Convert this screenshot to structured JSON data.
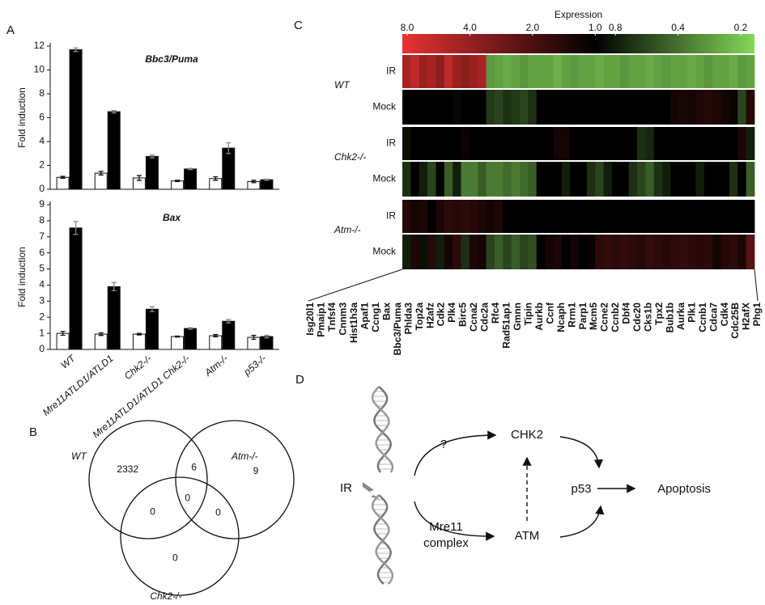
{
  "panel_labels": [
    "A",
    "B",
    "C",
    "D"
  ],
  "chart_data": [
    {
      "type": "bar",
      "title": "Bbc3/Puma",
      "ylabel": "Fold induction",
      "ylim": [
        0,
        12
      ],
      "yticks": [
        0,
        2,
        4,
        6,
        8,
        10,
        12
      ],
      "series": [
        {
          "color": "#ffffff",
          "values": [
            1.0,
            1.35,
            0.95,
            0.7,
            0.9,
            0.65
          ],
          "errors": [
            0.08,
            0.15,
            0.2,
            0.05,
            0.15,
            0.1
          ]
        },
        {
          "color": "#000000",
          "values": [
            11.7,
            6.5,
            2.75,
            1.7,
            3.45,
            0.8
          ],
          "errors": [
            0.15,
            0.1,
            0.12,
            0.05,
            0.45,
            0.05
          ]
        }
      ]
    },
    {
      "type": "bar",
      "title": "Bax",
      "ylabel": "Fold induction",
      "ylim": [
        0,
        9
      ],
      "yticks": [
        0,
        1,
        2,
        3,
        4,
        5,
        6,
        7,
        8,
        9
      ],
      "categories": [
        "WT",
        "Mre11ATLD1/ATLD1",
        "Chk2-/-",
        "Mre11ATLD1/ATLD1 Chk2-/-",
        "Atm-/-",
        "p53-/-"
      ],
      "series": [
        {
          "color": "#ffffff",
          "values": [
            1.0,
            0.95,
            0.95,
            0.8,
            0.85,
            0.75
          ],
          "errors": [
            0.12,
            0.08,
            0.05,
            0.03,
            0.07,
            0.12
          ]
        },
        {
          "color": "#000000",
          "values": [
            7.55,
            3.9,
            2.5,
            1.3,
            1.75,
            0.8
          ],
          "errors": [
            0.4,
            0.25,
            0.15,
            0.05,
            0.1,
            0.08
          ]
        }
      ]
    },
    {
      "type": "venn",
      "sets": [
        "WT",
        "Atm-/-",
        "Chk2-/-"
      ],
      "regions": [
        {
          "sets": [
            0
          ],
          "value": 2332
        },
        {
          "sets": [
            1
          ],
          "value": 9
        },
        {
          "sets": [
            2
          ],
          "value": 0
        },
        {
          "sets": [
            0,
            1
          ],
          "value": 6
        },
        {
          "sets": [
            0,
            2
          ],
          "value": 0
        },
        {
          "sets": [
            1,
            2
          ],
          "value": 0
        },
        {
          "sets": [
            0,
            1,
            2
          ],
          "value": 0
        }
      ]
    },
    {
      "type": "heatmap",
      "colorbar_title": "Expression",
      "log_scale": true,
      "clim": [
        8,
        0.2
      ],
      "colorbar_ticks": [
        {
          "value": 8,
          "label": "8.0"
        },
        {
          "value": 4,
          "label": "4.0"
        },
        {
          "value": 2,
          "label": "2.0"
        },
        {
          "value": 1,
          "label": "1.0"
        },
        {
          "value": 0.8,
          "label": "0.8"
        },
        {
          "value": 0.4,
          "label": "0.4"
        },
        {
          "value": 0.2,
          "label": "0.2"
        }
      ],
      "high_color": "#e83232",
      "mid_color": "#000000",
      "low_color": "#84d85a",
      "gene_groups": [
        {
          "color": "#d0222a",
          "genes": [
            "Isg20l1",
            "Pmaip1",
            "Tnfsf4",
            "Cnnm3",
            "Hist1h3a",
            "Apaf1",
            "Ccng1",
            "Bax",
            "Bbc3/Puma",
            "Phlda3"
          ]
        },
        {
          "color": "#1f7a3c",
          "genes": [
            "Top2a",
            "H2afz",
            "Cdk2",
            "Plk4",
            "Birc5",
            "Ccna2",
            "Cdc2a",
            "Rfc4",
            "Rad51ap1",
            "Gmnn",
            "Tipin",
            "Aurkb",
            "Ccnf",
            "Ncaph",
            "Rrm1",
            "Parp1",
            "Mcm5",
            "Ccne2",
            "Ccnb2",
            "Dbf4",
            "Cdc20",
            "Cks1b",
            "Tpx2",
            "Bub1b",
            "Aurka",
            "Plk1",
            "Ccnb1",
            "Cdca7",
            "Cdk4",
            "Cdc25B",
            "H2afX",
            "Phg1"
          ]
        }
      ],
      "row_groups": [
        {
          "name": "WT",
          "rows": [
            {
              "name": "IR",
              "values": [
                4.5,
                5.5,
                4.0,
                4.5,
                3.5,
                5.5,
                4.0,
                3.5,
                4.0,
                4.5,
                0.32,
                0.3,
                0.28,
                0.3,
                0.33,
                0.3,
                0.3,
                0.3,
                0.27,
                0.3,
                0.32,
                0.3,
                0.3,
                0.28,
                0.3,
                0.3,
                0.33,
                0.3,
                0.3,
                0.28,
                0.3,
                0.32,
                0.3,
                0.3,
                0.28,
                0.3,
                0.33,
                0.3,
                0.3,
                0.28,
                0.32,
                0.3
              ]
            },
            {
              "name": "Mock",
              "values": [
                1,
                1,
                1,
                1,
                1,
                1,
                0.95,
                1,
                1,
                1,
                0.65,
                0.6,
                0.7,
                0.65,
                0.6,
                0.7,
                1,
                1,
                1,
                1,
                1,
                1,
                1,
                1,
                1,
                1,
                1,
                1,
                1,
                1,
                1,
                1,
                1.2,
                1.3,
                1.2,
                1.3,
                1.4,
                1.3,
                1.2,
                1.1,
                0.6,
                1.4
              ]
            }
          ]
        },
        {
          "name": "Chk2-/-",
          "rows": [
            {
              "name": "IR",
              "values": [
                0.9,
                1,
                1,
                1,
                1,
                1,
                1,
                1.1,
                1,
                1,
                1,
                1,
                1,
                1,
                1,
                1,
                1,
                1,
                1.2,
                1.2,
                1,
                1,
                1,
                1,
                1,
                1,
                1,
                1,
                0.7,
                0.75,
                1,
                1,
                1,
                1,
                1,
                1,
                1,
                1,
                1,
                1,
                1.3,
                0.8
              ]
            },
            {
              "name": "Mock",
              "values": [
                0.7,
                1,
                0.8,
                0.6,
                1,
                0.5,
                0.8,
                0.4,
                0.4,
                0.5,
                0.4,
                0.4,
                0.45,
                0.4,
                0.45,
                0.5,
                1,
                1,
                1,
                0.8,
                1,
                1,
                0.7,
                0.6,
                0.8,
                1,
                1,
                0.7,
                0.6,
                0.5,
                0.7,
                0.8,
                1,
                1,
                1,
                0.8,
                1,
                1,
                1,
                0.7,
                1,
                0.5
              ]
            }
          ]
        },
        {
          "name": "Atm-/-",
          "rows": [
            {
              "name": "IR",
              "values": [
                1.4,
                1.2,
                1.3,
                1,
                1.3,
                1.5,
                1.4,
                1.5,
                1.4,
                1.3,
                1.2,
                1.3,
                1,
                1,
                1,
                1,
                1,
                1,
                1,
                1,
                1,
                1,
                1,
                1,
                1,
                1,
                1,
                1,
                1,
                1,
                1,
                1,
                1,
                1,
                1,
                1,
                1,
                1,
                1,
                1,
                1,
                1
              ]
            },
            {
              "name": "Mock",
              "values": [
                0.8,
                1.3,
                0.9,
                1.4,
                0.8,
                1.2,
                1.5,
                0.7,
                1.3,
                1.2,
                0.6,
                0.5,
                0.6,
                0.5,
                0.6,
                0.55,
                1,
                1.2,
                1.3,
                1,
                1.2,
                1,
                1.1,
                1.5,
                1.6,
                1.5,
                1.6,
                1.5,
                1.4,
                1.6,
                1.5,
                1.4,
                1.5,
                1.6,
                1.5,
                1.4,
                1.5,
                1.2,
                1.4,
                1.5,
                1.3,
                2.2
              ]
            }
          ]
        }
      ]
    }
  ],
  "diagram": {
    "nodes": [
      {
        "label": "IR"
      },
      {
        "label": "?"
      },
      {
        "label": "CHK2"
      },
      {
        "label_lines": [
          "Mre11",
          "complex"
        ]
      },
      {
        "label": "ATM"
      },
      {
        "label": "p53"
      },
      {
        "label": "Apoptosis"
      }
    ]
  }
}
